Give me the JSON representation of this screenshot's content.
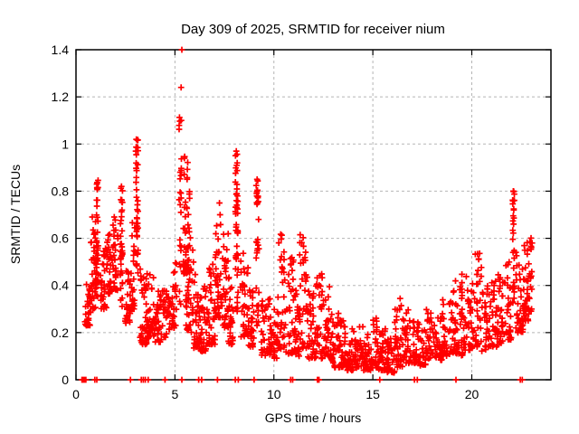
{
  "chart_data": {
    "type": "scatter",
    "title": "Day 309 of 2025, SRMTID for receiver nium",
    "xlabel": "GPS time / hours",
    "ylabel": "SRMTID / TECUs",
    "xlim": [
      0,
      24
    ],
    "ylim": [
      0,
      1.4
    ],
    "xticks": [
      0,
      5,
      10,
      15,
      20
    ],
    "xtick_labels": [
      "0",
      "5",
      "10",
      "15",
      "20"
    ],
    "yticks": [
      0,
      0.2,
      0.4,
      0.6,
      0.8,
      1,
      1.2,
      1.4
    ],
    "ytick_labels": [
      "0",
      "0.2",
      "0.4",
      "0.6",
      "0.8",
      "1",
      "1.2",
      "1.4"
    ],
    "grid": "dashed",
    "legend": "none",
    "marker": "plus",
    "marker_color": "#ff0000",
    "grid_color": "#b5b5b5",
    "border_color": "#000000",
    "background": "#ffffff",
    "seed": 77,
    "clusters": [
      [
        0.45,
        0.75,
        0.23,
        0.45,
        30,
        0
      ],
      [
        0.75,
        1.0,
        0.3,
        0.7,
        35,
        0
      ],
      [
        0.95,
        1.2,
        0.35,
        0.85,
        40,
        1
      ],
      [
        1.2,
        1.55,
        0.3,
        0.62,
        30,
        0
      ],
      [
        1.55,
        1.85,
        0.36,
        0.65,
        30,
        0
      ],
      [
        1.85,
        2.15,
        0.38,
        0.75,
        30,
        0
      ],
      [
        2.15,
        2.45,
        0.3,
        0.82,
        35,
        1
      ],
      [
        2.45,
        2.75,
        0.24,
        0.55,
        28,
        0
      ],
      [
        2.78,
        3.0,
        0.3,
        0.7,
        25,
        0
      ],
      [
        2.95,
        3.22,
        0.45,
        1.02,
        40,
        1
      ],
      [
        3.22,
        3.6,
        0.15,
        0.48,
        40,
        0
      ],
      [
        3.6,
        3.95,
        0.18,
        0.45,
        32,
        0
      ],
      [
        3.95,
        4.35,
        0.16,
        0.38,
        35,
        0
      ],
      [
        4.35,
        4.75,
        0.18,
        0.38,
        32,
        0
      ],
      [
        4.75,
        5.1,
        0.22,
        0.52,
        28,
        0
      ],
      [
        5.12,
        5.42,
        0.3,
        1.12,
        25,
        1
      ],
      [
        5.42,
        5.75,
        0.45,
        0.95,
        50,
        0
      ],
      [
        5.55,
        5.95,
        0.2,
        0.62,
        40,
        0
      ],
      [
        5.95,
        6.3,
        0.13,
        0.45,
        35,
        0
      ],
      [
        6.3,
        6.7,
        0.12,
        0.4,
        35,
        0
      ],
      [
        6.7,
        7.05,
        0.15,
        0.52,
        35,
        0
      ],
      [
        7.05,
        7.4,
        0.26,
        0.66,
        38,
        0
      ],
      [
        7.4,
        7.7,
        0.22,
        0.62,
        32,
        0
      ],
      [
        7.7,
        7.95,
        0.15,
        0.45,
        28,
        0
      ],
      [
        7.95,
        8.3,
        0.28,
        0.97,
        45,
        1
      ],
      [
        8.3,
        8.7,
        0.18,
        0.56,
        35,
        0
      ],
      [
        8.7,
        9.0,
        0.14,
        0.4,
        28,
        0
      ],
      [
        9.0,
        9.35,
        0.2,
        0.85,
        32,
        1
      ],
      [
        9.35,
        9.8,
        0.1,
        0.35,
        35,
        0
      ],
      [
        9.8,
        10.2,
        0.09,
        0.3,
        35,
        0
      ],
      [
        10.2,
        10.6,
        0.13,
        0.62,
        35,
        0
      ],
      [
        10.6,
        11.0,
        0.11,
        0.55,
        35,
        0
      ],
      [
        11.0,
        11.3,
        0.1,
        0.38,
        28,
        0
      ],
      [
        11.3,
        11.7,
        0.13,
        0.63,
        38,
        0
      ],
      [
        11.7,
        12.1,
        0.09,
        0.38,
        34,
        0
      ],
      [
        12.1,
        12.5,
        0.09,
        0.45,
        34,
        0
      ],
      [
        12.5,
        12.9,
        0.1,
        0.42,
        34,
        0
      ],
      [
        12.9,
        13.3,
        0.05,
        0.3,
        34,
        0
      ],
      [
        13.3,
        13.7,
        0.05,
        0.25,
        34,
        0
      ],
      [
        13.7,
        14.1,
        0.04,
        0.22,
        34,
        0
      ],
      [
        14.1,
        14.5,
        0.05,
        0.24,
        32,
        0
      ],
      [
        14.5,
        14.9,
        0.04,
        0.2,
        32,
        0
      ],
      [
        14.9,
        15.3,
        0.05,
        0.28,
        34,
        0
      ],
      [
        15.3,
        15.7,
        0.04,
        0.22,
        34,
        0
      ],
      [
        15.7,
        16.1,
        0.03,
        0.18,
        34,
        0
      ],
      [
        16.1,
        16.5,
        0.05,
        0.35,
        34,
        0
      ],
      [
        16.5,
        16.9,
        0.07,
        0.3,
        32,
        0
      ],
      [
        16.9,
        17.3,
        0.07,
        0.28,
        30,
        0
      ],
      [
        17.3,
        17.7,
        0.06,
        0.25,
        30,
        0
      ],
      [
        17.7,
        18.1,
        0.09,
        0.3,
        30,
        0
      ],
      [
        18.1,
        18.5,
        0.08,
        0.28,
        30,
        0
      ],
      [
        18.5,
        18.9,
        0.1,
        0.35,
        32,
        0
      ],
      [
        18.9,
        19.3,
        0.11,
        0.42,
        32,
        0
      ],
      [
        19.3,
        19.7,
        0.1,
        0.45,
        32,
        0
      ],
      [
        19.7,
        20.1,
        0.12,
        0.45,
        32,
        0
      ],
      [
        20.1,
        20.5,
        0.14,
        0.55,
        32,
        0
      ],
      [
        20.5,
        20.9,
        0.12,
        0.4,
        32,
        0
      ],
      [
        20.9,
        21.3,
        0.14,
        0.42,
        32,
        0
      ],
      [
        21.3,
        21.7,
        0.15,
        0.45,
        32,
        0
      ],
      [
        21.7,
        22.0,
        0.17,
        0.5,
        30,
        0
      ],
      [
        22.0,
        22.22,
        0.3,
        0.8,
        26,
        1
      ],
      [
        22.22,
        22.6,
        0.2,
        0.55,
        40,
        0
      ],
      [
        22.6,
        23.05,
        0.25,
        0.62,
        55,
        0
      ]
    ],
    "peak_points": [
      [
        5.35,
        1.4
      ],
      [
        5.31,
        1.24
      ],
      [
        5.32,
        1.1
      ],
      [
        3.05,
        1.02
      ],
      [
        3.02,
        0.97
      ],
      [
        8.1,
        0.97
      ],
      [
        8.12,
        0.91
      ],
      [
        9.15,
        0.85
      ],
      [
        9.13,
        0.79
      ],
      [
        1.05,
        0.83
      ],
      [
        2.3,
        0.82
      ],
      [
        22.1,
        0.8
      ],
      [
        22.09,
        0.76
      ],
      [
        22.12,
        0.72
      ],
      [
        22.11,
        0.66
      ],
      [
        7.25,
        0.75
      ],
      [
        7.28,
        0.7
      ],
      [
        0.52,
        0.23
      ],
      [
        3.35,
        0.16
      ]
    ],
    "zero_points": [
      0.3,
      0.34,
      0.38,
      0.42,
      0.46,
      0.5,
      0.95,
      1.05,
      2.75,
      3.3,
      3.4,
      3.5,
      3.65,
      4.5,
      5.35,
      6.2,
      6.35,
      7.15,
      8.05,
      8.2,
      9.0,
      10.85,
      10.95,
      12.2,
      12.28,
      15.35,
      17.1,
      17.25,
      19.2,
      22.45,
      22.55
    ]
  }
}
